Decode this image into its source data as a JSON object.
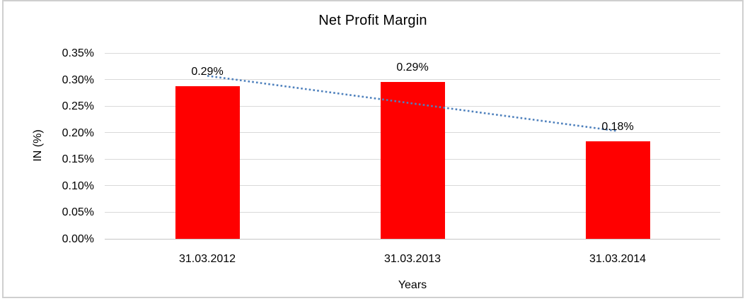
{
  "frame": {
    "border_color": "#cfcfcf",
    "background": "#ffffff"
  },
  "chart_data": {
    "type": "bar",
    "title": "Net Profit Margin",
    "xlabel": "Years",
    "ylabel": "IN (%)",
    "categories": [
      "31.03.2012",
      "31.03.2013",
      "31.03.2014"
    ],
    "values": [
      0.287,
      0.295,
      0.183
    ],
    "data_labels": [
      "0.29%",
      "0.29%",
      "0.18%"
    ],
    "ylim": [
      0,
      0.35
    ],
    "ytick_step": 0.05,
    "ytick_labels": [
      "0.35%",
      "0.30%",
      "0.25%",
      "0.20%",
      "0.15%",
      "0.10%",
      "0.05%",
      "0.00%"
    ],
    "grid": true,
    "legend": "none",
    "bar_color": "#ff0000",
    "gridline_color": "#d9d9d9",
    "axis_line_color": "#c6c6c6",
    "text_color": "#000000",
    "trendline": {
      "type": "linear",
      "style": "dotted",
      "color": "#4f81bd"
    }
  }
}
